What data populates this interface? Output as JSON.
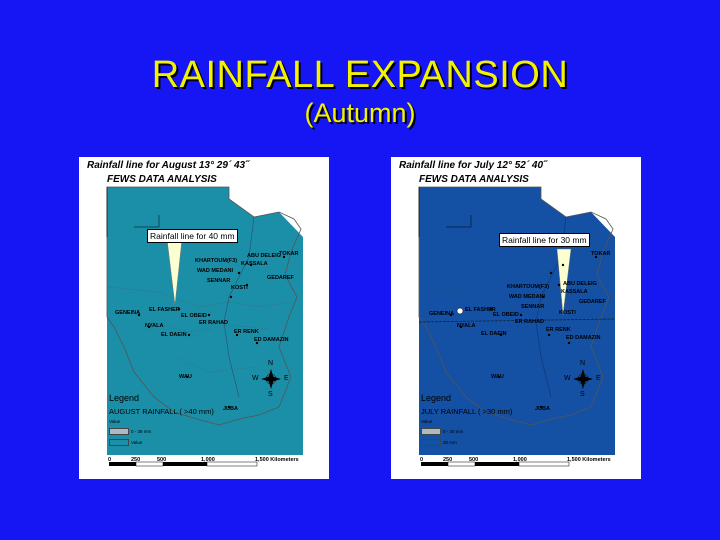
{
  "slide": {
    "title": "RAINFALL EXPANSION",
    "subtitle": "(Autumn)"
  },
  "colors": {
    "background": "#1616f5",
    "title": "#f2f200"
  },
  "maps": [
    {
      "title": "Rainfall line for August 13° 29´ 43˝",
      "subtitle": "FEWS DATA ANALYSIS",
      "callout": "Rainfall line for 40 mm",
      "legend_title": "Legend",
      "legend_layer": "AUGUST RAINFALL ( >40 mm)",
      "legend_field": "Value",
      "legend_items": [
        "0 - 39 mm",
        "Value"
      ],
      "colors": {
        "rain": "#1b8fa8",
        "dry": "#a9bcc4"
      },
      "places": [
        "TOKAR",
        "ABU DELEIG",
        "KASSALA",
        "KHARTOUM(F3)",
        "WAD MEDANI",
        "GEDAREF",
        "SENNAR",
        "KOSTI",
        "GENEINA",
        "EL FASHER",
        "EL OBEID",
        "ER RAHAD",
        "NYALA",
        "EL DAEIN",
        "ER RENK",
        "ED DAMAZIN",
        "WAU",
        "JUBA"
      ],
      "scale": [
        "0",
        "250",
        "500",
        "1,000",
        "1,500 Kilometers"
      ],
      "compass": [
        "N",
        "S",
        "W",
        "E"
      ]
    },
    {
      "title": "Rainfall line for July 12° 52´ 40˝",
      "subtitle": "FEWS DATA ANALYSIS",
      "callout": "Rainfall line for 30 mm",
      "legend_title": "Legend",
      "legend_layer": "JULY RAINFALL ( >30 mm)",
      "legend_field": "Value",
      "legend_items": [
        "0 - 30 mm",
        "30 mm"
      ],
      "colors": {
        "rain": "#1450a3",
        "dry": "#a9bcc4"
      },
      "places": [
        "TOKAR",
        "ABU DELEIG",
        "KASSALA",
        "KHARTOUM(F3)",
        "WAD MEDANI",
        "GEDAREF",
        "SENNAR",
        "KOSTI",
        "GENEINA",
        "EL FASHER",
        "EL OBEID",
        "ER RAHAD",
        "NYALA",
        "EL DAEIN",
        "ER RENK",
        "ED DAMAZIN",
        "WAU",
        "JUBA"
      ],
      "scale": [
        "0",
        "250",
        "500",
        "1,000",
        "1,500 Kilometers"
      ],
      "compass": [
        "N",
        "S",
        "W",
        "E"
      ]
    }
  ]
}
